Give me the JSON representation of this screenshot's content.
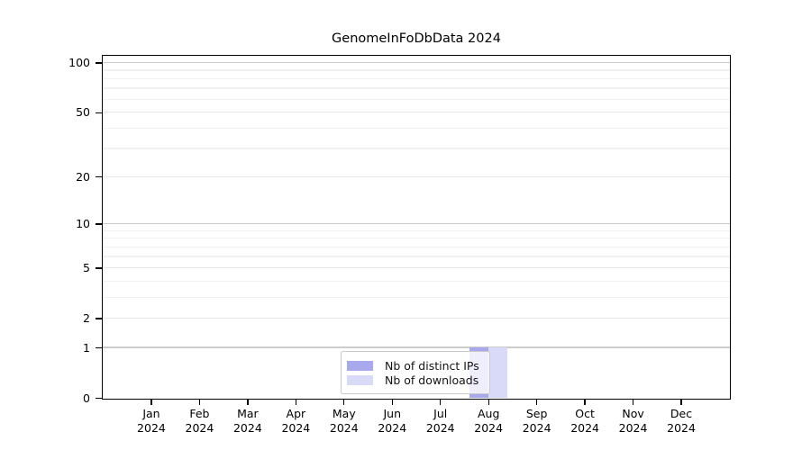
{
  "chart_data": {
    "type": "bar",
    "title": "GenomeInFoDbData 2024",
    "scale": "log1p",
    "ylim": [
      0,
      110
    ],
    "grid": true,
    "legend_position": "lower center",
    "categories": [
      "Jan",
      "Feb",
      "Mar",
      "Apr",
      "May",
      "Jun",
      "Jul",
      "Aug",
      "Sep",
      "Oct",
      "Nov",
      "Dec"
    ],
    "category_year": "2024",
    "y_ticks": [
      0,
      1,
      2,
      5,
      10,
      20,
      50,
      100
    ],
    "gridlines": {
      "major": [
        1,
        10,
        100
      ],
      "mid": [
        2,
        5,
        20,
        50
      ],
      "minor": [
        3,
        4,
        6,
        7,
        8,
        9,
        30,
        40,
        60,
        70,
        80,
        90
      ]
    },
    "series": [
      {
        "name": "Nb of distinct IPs",
        "color": "#a8a8ed",
        "values": [
          0,
          0,
          0,
          0,
          0,
          0,
          0,
          1,
          0,
          0,
          0,
          0
        ]
      },
      {
        "name": "Nb of downloads",
        "color": "#d9d9f8",
        "values": [
          0,
          0,
          0,
          0,
          0,
          0,
          0,
          1,
          0,
          0,
          0,
          0
        ]
      }
    ]
  },
  "colors": {
    "gridline_major": "#cccccc",
    "gridline_mid": "#e7e7e7",
    "gridline_minor": "#f1f1f1",
    "axis": "#000000",
    "legend_border": "#c9c9c9"
  }
}
